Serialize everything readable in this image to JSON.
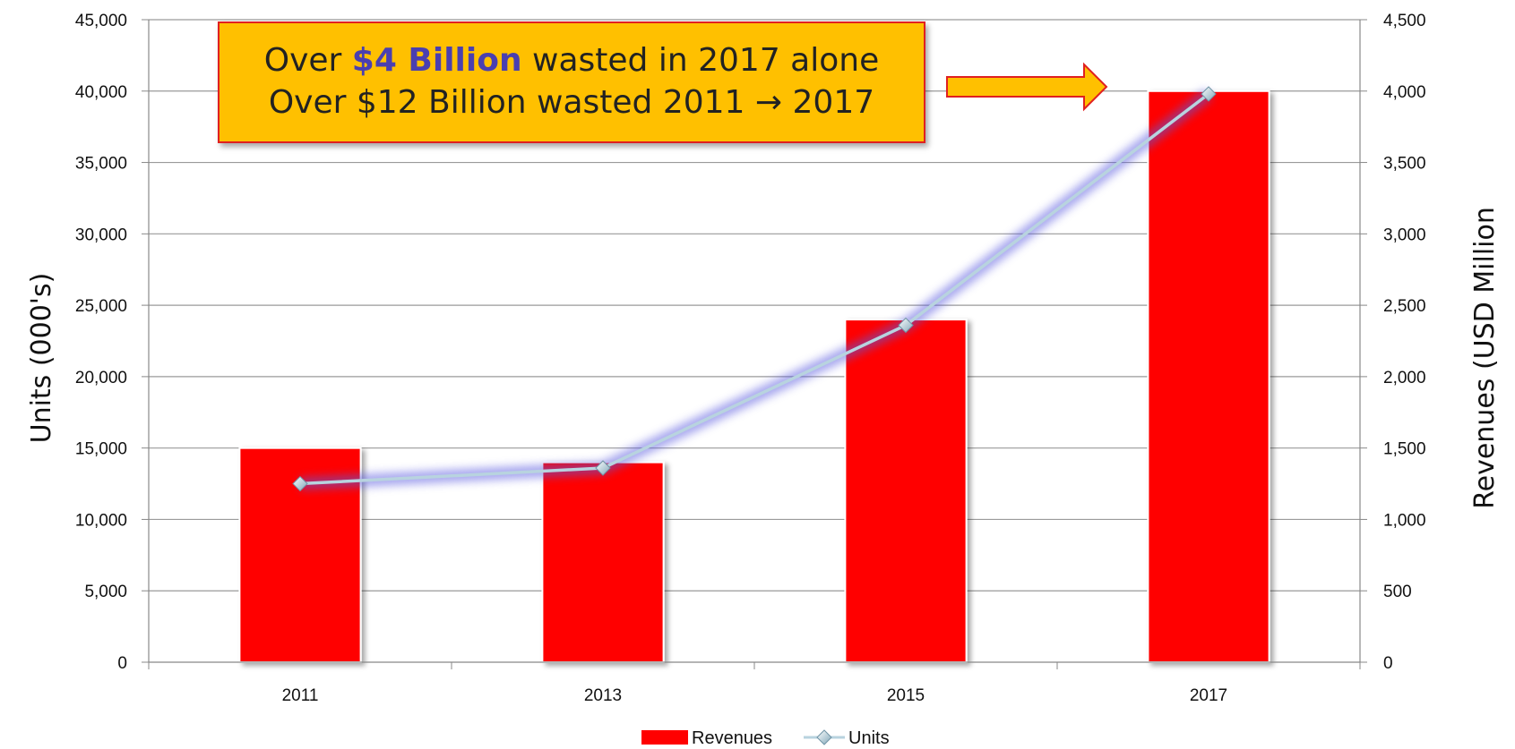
{
  "callout": {
    "line1_prefix": "Over ",
    "line1_highlight": "$4 Billion",
    "line1_suffix": " wasted in 2017 alone",
    "line2": "Over $12 Billion wasted 2011 → 2017"
  },
  "colors": {
    "bars": "#ff0000",
    "line": "#b8d3df",
    "line_glow": "#5a5ae0",
    "callout_fill": "#ffc000",
    "callout_border": "#e02020",
    "highlight_text": "#4a3fb0",
    "arrow": "#ffc000"
  },
  "chart_data": {
    "type": "bar",
    "categories": [
      "2011",
      "2013",
      "2015",
      "2017"
    ],
    "series": [
      {
        "name": "Revenues",
        "type": "bar",
        "axis": "left",
        "values": [
          15000,
          14000,
          24000,
          40000
        ]
      },
      {
        "name": "Units",
        "type": "line",
        "axis": "right",
        "values": [
          1250,
          1360,
          2360,
          3980
        ]
      }
    ],
    "y_left": {
      "label": "Units (000's)",
      "ylim": [
        0,
        45000
      ],
      "ticks": [
        "0",
        "5,000",
        "10,000",
        "15,000",
        "20,000",
        "25,000",
        "30,000",
        "35,000",
        "40,000",
        "45,000"
      ]
    },
    "y_right": {
      "label": "Revenues (USD Million",
      "ylim": [
        0,
        4500
      ],
      "ticks": [
        "0",
        "500",
        "1,000",
        "1,500",
        "2,000",
        "2,500",
        "3,000",
        "3,500",
        "4,000",
        "4,500"
      ]
    },
    "grid": true,
    "legend": "bottom"
  }
}
